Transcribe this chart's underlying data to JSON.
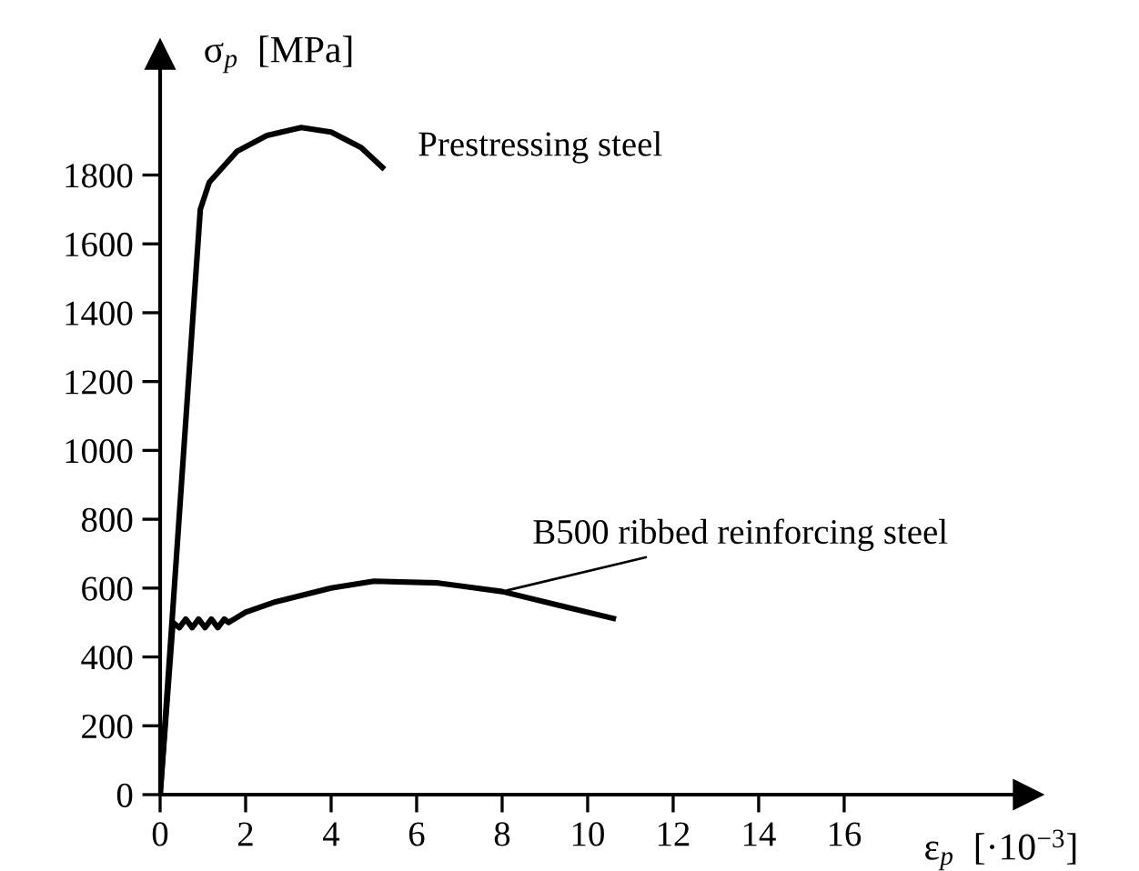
{
  "chart_data": {
    "type": "line",
    "ylabel": "σ$_{p}$  [MPa]",
    "xlabel": "ε$_{p}$  [·10$^{−3}$]",
    "xlim": [
      0,
      20.3
    ],
    "ylim": [
      0,
      2150
    ],
    "xticks": [
      0,
      2,
      4,
      6,
      8,
      10,
      12,
      14,
      16
    ],
    "yticks": [
      0,
      200,
      400,
      600,
      800,
      1000,
      1200,
      1400,
      1600,
      1800
    ],
    "grid": false,
    "legend": false,
    "marker": "none",
    "line_style": "solid",
    "series": [
      {
        "name": "Prestressing steel",
        "color": "#000000",
        "x": [
          0,
          0.94,
          1.15,
          1.8,
          2.5,
          3.3,
          4.0,
          4.7,
          5.2
        ],
        "values": [
          0,
          1700,
          1779,
          1869,
          1915,
          1938,
          1925,
          1880,
          1822
        ]
      },
      {
        "name": "B500 ribbed reinforcing steel",
        "color": "#000000",
        "x": [
          0,
          0.3,
          0.45,
          0.6,
          0.75,
          0.9,
          1.05,
          1.2,
          1.35,
          1.5,
          1.6,
          2.0,
          2.7,
          4.0,
          5.0,
          6.5,
          8.0,
          9.5,
          10.6
        ],
        "values": [
          0,
          500,
          485,
          510,
          485,
          510,
          485,
          510,
          485,
          510,
          500,
          530,
          560,
          600,
          620,
          615,
          590,
          545,
          512
        ]
      }
    ]
  }
}
